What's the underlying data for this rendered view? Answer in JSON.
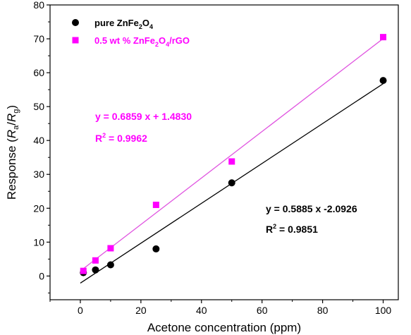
{
  "chart_data": {
    "type": "scatter",
    "title": "",
    "xlabel": "Acetone concentration (ppm)",
    "ylabel": {
      "prefix": "Response (",
      "ra_main": "R",
      "ra_sub": "a",
      "slash": "/",
      "rg_main": "R",
      "rg_sub": "g",
      "suffix": ")"
    },
    "xlim": [
      -10,
      105
    ],
    "ylim": [
      -7,
      80
    ],
    "xticks": [
      0,
      20,
      40,
      60,
      80,
      100
    ],
    "yticks": [
      0,
      10,
      20,
      30,
      40,
      50,
      60,
      70,
      80
    ],
    "legend_position": "top-left",
    "series": [
      {
        "name": "pure ZnFe2O4",
        "legend_parts": [
          {
            "t": "pure ZnFe",
            "sub": false
          },
          {
            "t": "2",
            "sub": true
          },
          {
            "t": "O",
            "sub": false
          },
          {
            "t": "4",
            "sub": true
          }
        ],
        "marker": "circle",
        "color": "#000000",
        "line_color": "#000000",
        "x": [
          1,
          5,
          10,
          25,
          50,
          100
        ],
        "y": [
          1.0,
          1.8,
          3.3,
          8.0,
          27.5,
          57.7
        ],
        "fit": {
          "slope": 0.5885,
          "intercept": -2.0926,
          "x_range": [
            0,
            100
          ]
        },
        "equation": "y = 0.5885 x -2.0926",
        "r2_label": "R",
        "r2_sup": "2",
        "r2_value": " = 0.9851"
      },
      {
        "name": "0.5 wt % ZnFe2O4/rGO",
        "legend_parts": [
          {
            "t": "0.5 wt % ZnFe",
            "sub": false
          },
          {
            "t": "2",
            "sub": true
          },
          {
            "t": "O",
            "sub": false
          },
          {
            "t": "4",
            "sub": true
          },
          {
            "t": "/rGO",
            "sub": false
          }
        ],
        "marker": "square",
        "color": "#ff00ff",
        "line_color": "#e055e0",
        "x": [
          1,
          5,
          10,
          25,
          50,
          100
        ],
        "y": [
          1.5,
          4.6,
          8.2,
          21.0,
          33.8,
          70.5
        ],
        "fit": {
          "slope": 0.6859,
          "intercept": 1.483,
          "x_range": [
            0,
            100
          ]
        },
        "equation": "y = 0.6859 x + 1.4830",
        "r2_label": "R",
        "r2_sup": "2",
        "r2_value": " = 0.9962"
      }
    ]
  }
}
